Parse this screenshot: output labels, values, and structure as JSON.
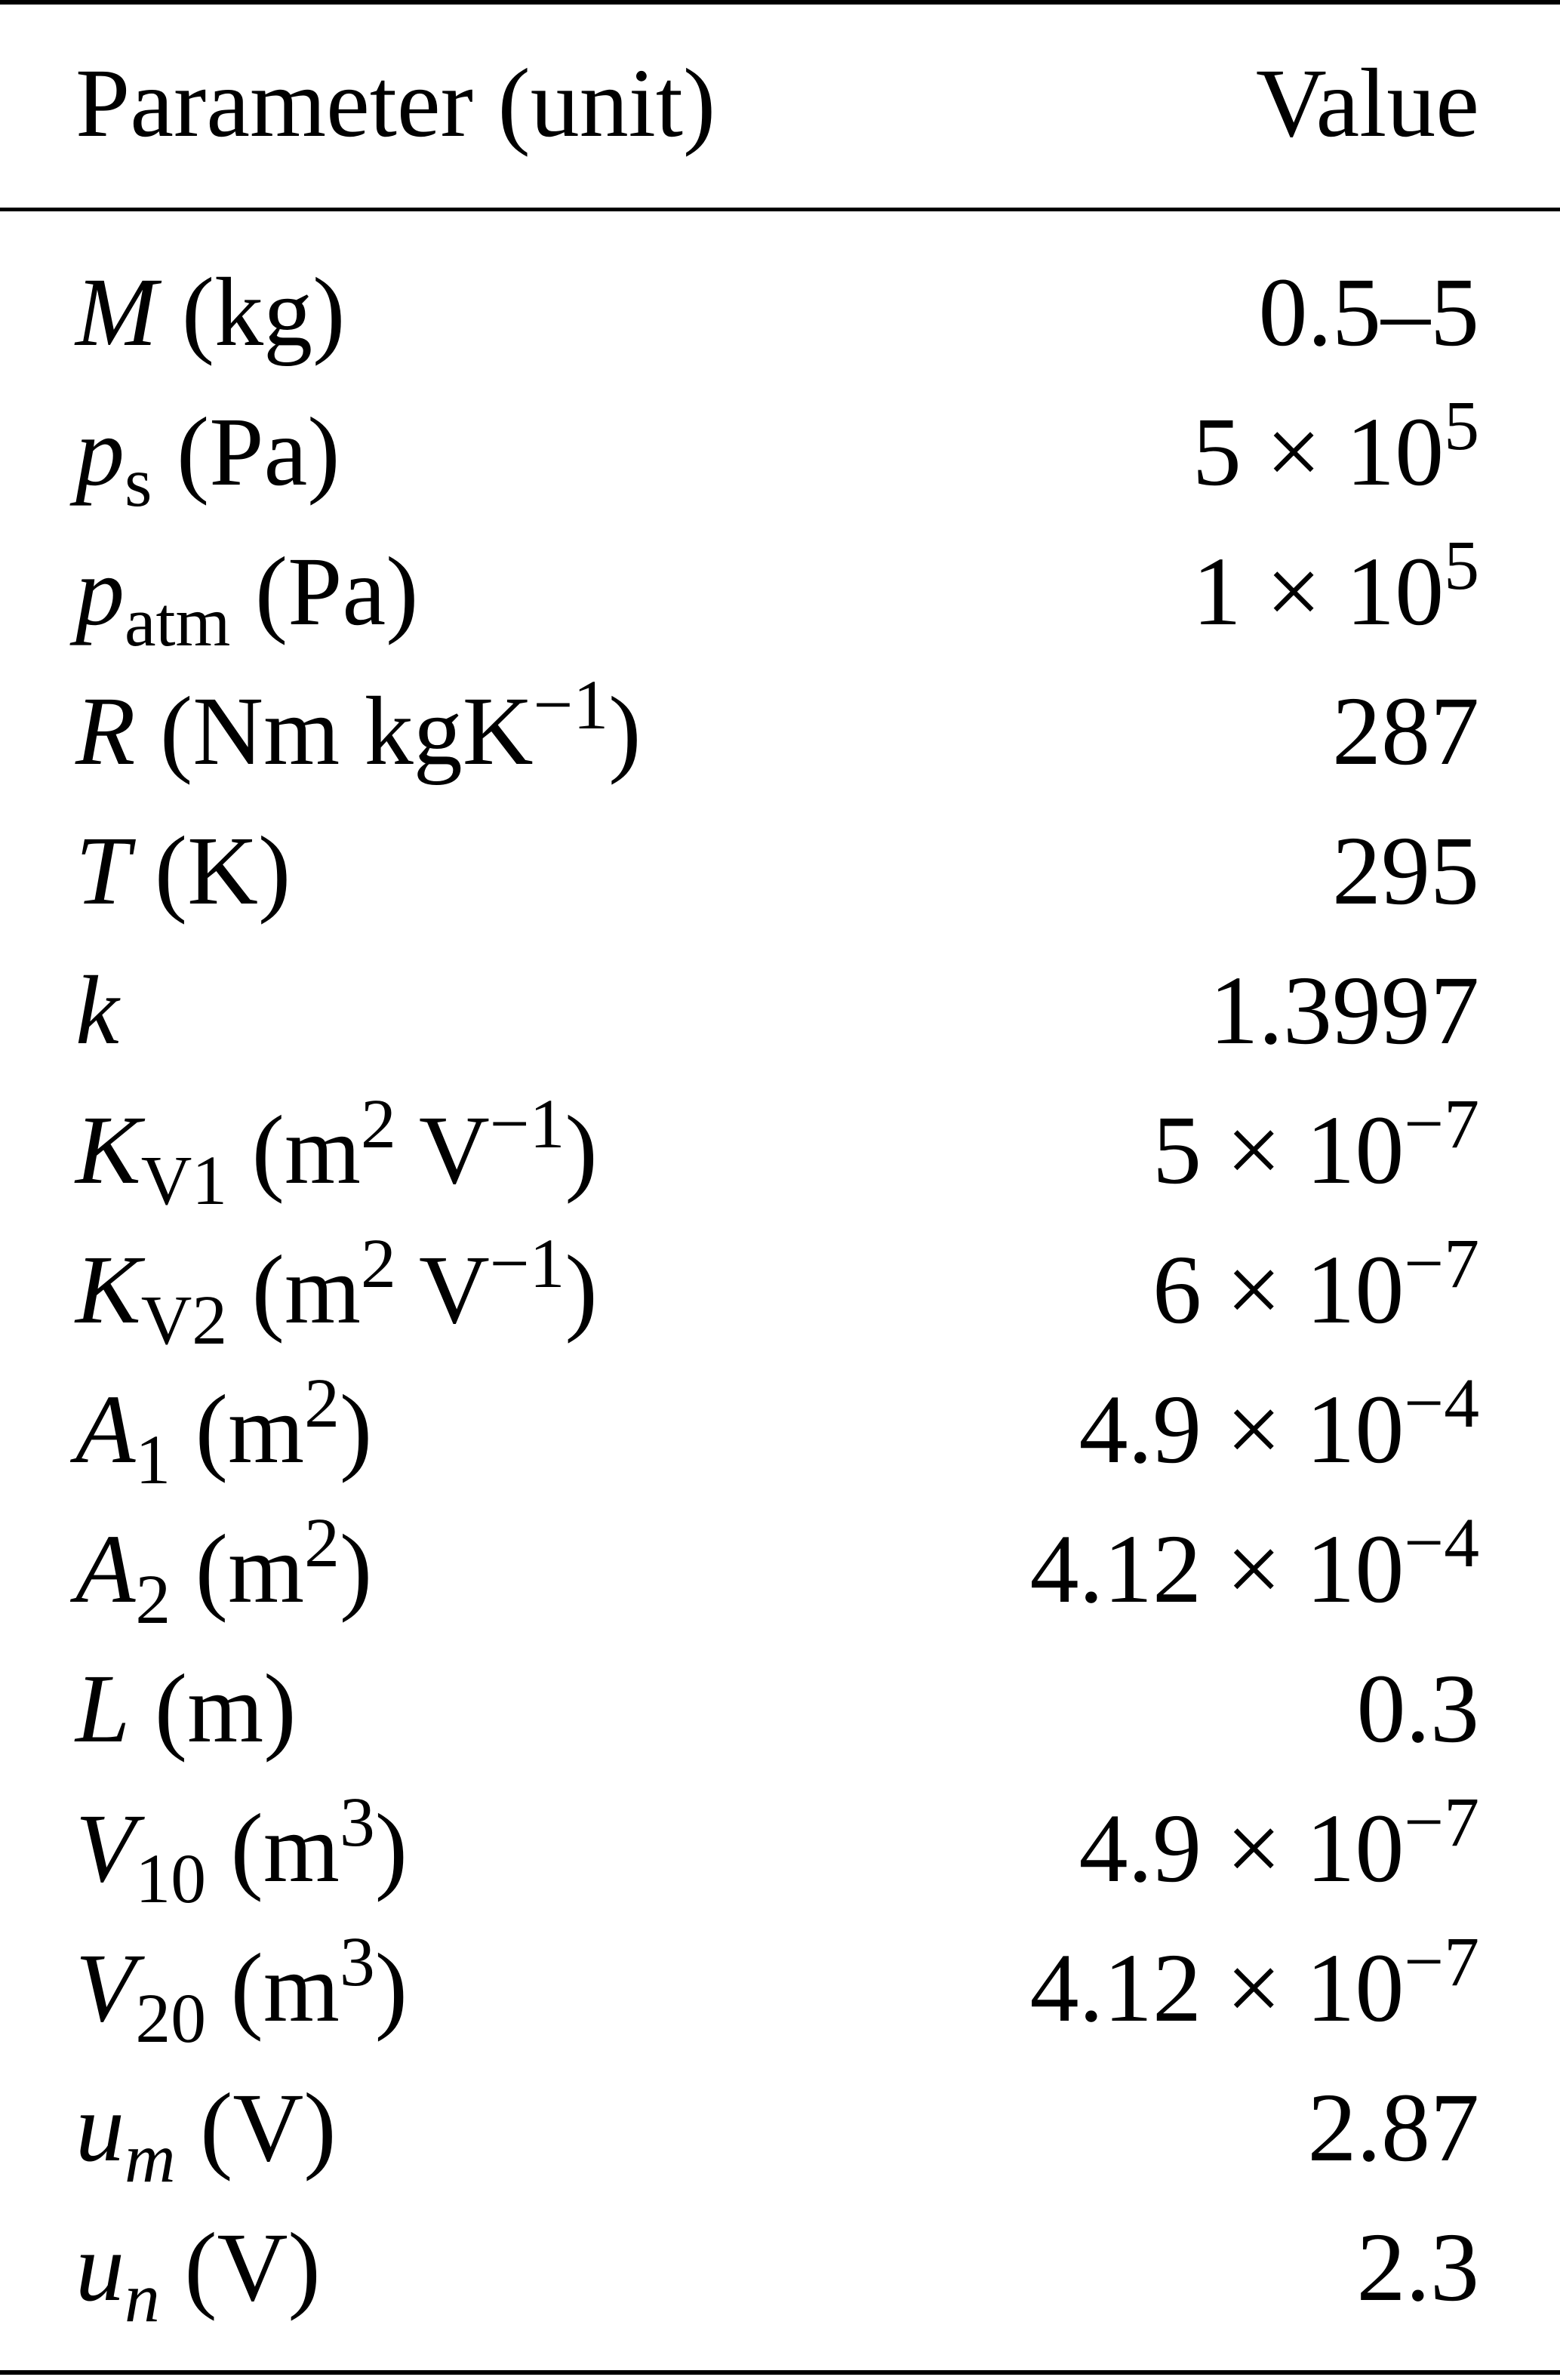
{
  "header": {
    "param": "Parameter (unit)",
    "value": "Value"
  },
  "rows": [
    {
      "name": [
        {
          "it": "M"
        },
        {
          "t": " (kg)"
        }
      ],
      "value": [
        {
          "t": "0.5–5"
        }
      ]
    },
    {
      "name": [
        {
          "it": "p"
        },
        {
          "sub": "s"
        },
        {
          "t": " (Pa)"
        }
      ],
      "value": [
        {
          "t": "5 × 10"
        },
        {
          "sup": "5"
        }
      ]
    },
    {
      "name": [
        {
          "it": "p"
        },
        {
          "sub": "atm"
        },
        {
          "t": " (Pa)"
        }
      ],
      "value": [
        {
          "t": "1 × 10"
        },
        {
          "sup": "5"
        }
      ]
    },
    {
      "name": [
        {
          "it": "R"
        },
        {
          "t": " (Nm kgK"
        },
        {
          "sup": "−1"
        },
        {
          "t": ")"
        }
      ],
      "value": [
        {
          "t": "287"
        }
      ]
    },
    {
      "name": [
        {
          "it": "T"
        },
        {
          "t": " (K)"
        }
      ],
      "value": [
        {
          "t": "295"
        }
      ]
    },
    {
      "name": [
        {
          "it": "k"
        }
      ],
      "value": [
        {
          "t": "1.3997"
        }
      ]
    },
    {
      "name": [
        {
          "it": "K"
        },
        {
          "sub": "V1"
        },
        {
          "t": " (m"
        },
        {
          "sup": "2"
        },
        {
          "t": " V"
        },
        {
          "sup": "−1"
        },
        {
          "t": ")"
        }
      ],
      "value": [
        {
          "t": "5 × 10"
        },
        {
          "sup": "−7"
        }
      ]
    },
    {
      "name": [
        {
          "it": "K"
        },
        {
          "sub": "V2"
        },
        {
          "t": " (m"
        },
        {
          "sup": "2"
        },
        {
          "t": " V"
        },
        {
          "sup": "−1"
        },
        {
          "t": ")"
        }
      ],
      "value": [
        {
          "t": "6 × 10"
        },
        {
          "sup": "−7"
        }
      ]
    },
    {
      "name": [
        {
          "it": "A"
        },
        {
          "sub": "1"
        },
        {
          "t": " (m"
        },
        {
          "sup": "2"
        },
        {
          "t": ")"
        }
      ],
      "value": [
        {
          "t": "4.9 × 10"
        },
        {
          "sup": "−4"
        }
      ]
    },
    {
      "name": [
        {
          "it": "A"
        },
        {
          "sub": "2"
        },
        {
          "t": " (m"
        },
        {
          "sup": "2"
        },
        {
          "t": ")"
        }
      ],
      "value": [
        {
          "t": "4.12 × 10"
        },
        {
          "sup": "−4"
        }
      ]
    },
    {
      "name": [
        {
          "it": "L"
        },
        {
          "t": " (m)"
        }
      ],
      "value": [
        {
          "t": "0.3"
        }
      ]
    },
    {
      "name": [
        {
          "it": "V"
        },
        {
          "sub": "10"
        },
        {
          "t": " (m"
        },
        {
          "sup": "3"
        },
        {
          "t": ")"
        }
      ],
      "value": [
        {
          "t": "4.9 × 10"
        },
        {
          "sup": "−7"
        }
      ]
    },
    {
      "name": [
        {
          "it": "V"
        },
        {
          "sub": "20"
        },
        {
          "t": " (m"
        },
        {
          "sup": "3"
        },
        {
          "t": ")"
        }
      ],
      "value": [
        {
          "t": "4.12 × 10"
        },
        {
          "sup": "−7"
        }
      ]
    },
    {
      "name": [
        {
          "it": "u"
        },
        {
          "subit": "m"
        },
        {
          "t": " (V)"
        }
      ],
      "value": [
        {
          "t": "2.87"
        }
      ]
    },
    {
      "name": [
        {
          "it": "u"
        },
        {
          "subit": "n"
        },
        {
          "t": " (V)"
        }
      ],
      "value": [
        {
          "t": "2.3"
        }
      ]
    }
  ]
}
